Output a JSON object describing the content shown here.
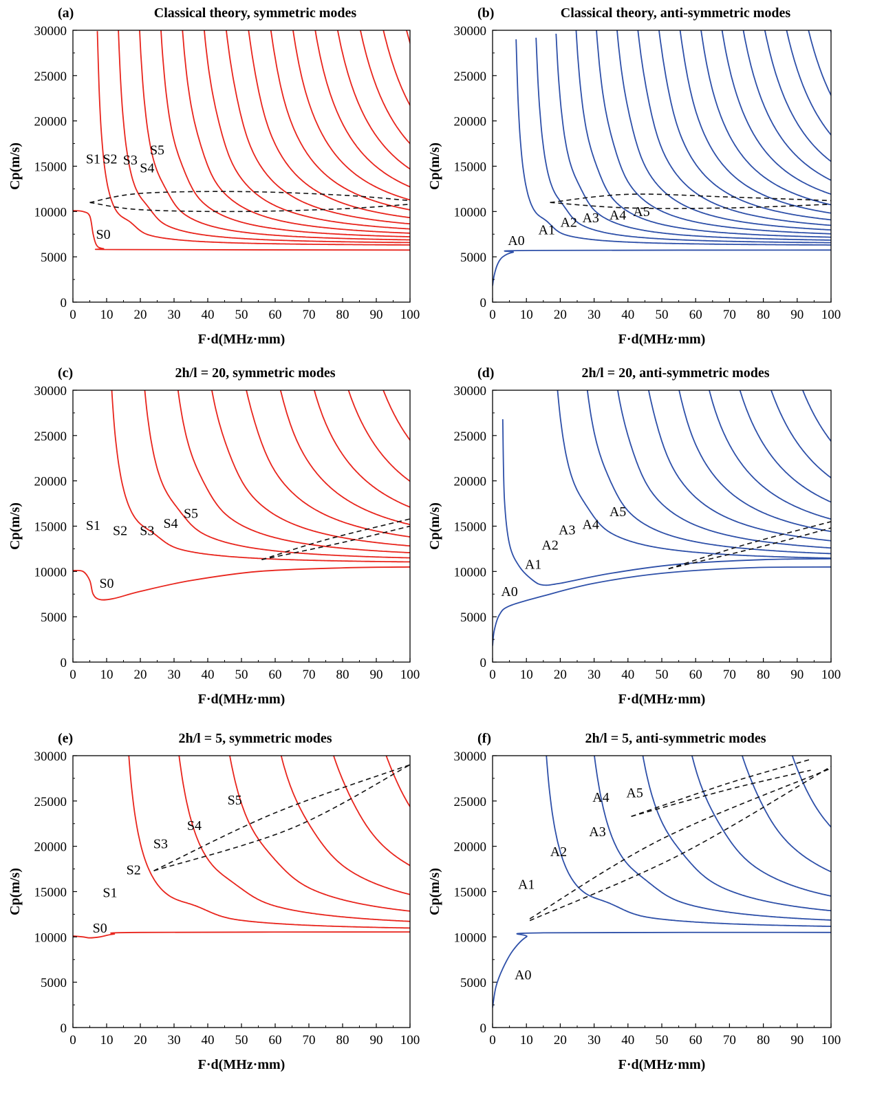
{
  "figure": {
    "colors": {
      "symmetric": "#e8241c",
      "antisymmetric": "#2d4fa8",
      "dashed": "#111111"
    }
  },
  "chart_data": [
    {
      "type": "line",
      "panel": "(a)",
      "title": "Classical theory, symmetric modes",
      "xlabel": "F·d(MHz·mm)",
      "ylabel": "Cp(m/s)",
      "xlim": [
        0,
        100
      ],
      "ylim": [
        0,
        30000
      ],
      "xticks": [
        0,
        10,
        20,
        30,
        40,
        50,
        60,
        70,
        80,
        90,
        100
      ],
      "yticks": [
        0,
        5000,
        10000,
        15000,
        20000,
        25000,
        30000
      ],
      "family": "symmetric",
      "asymptote": 6200,
      "mode_spacing": 5.2,
      "mode_count": 19,
      "series": [
        {
          "name": "S0",
          "kind": "base",
          "points": [
            [
              0,
              10100
            ],
            [
              3,
              10000
            ],
            [
              5,
              9500
            ],
            [
              6,
              7500
            ],
            [
              7,
              6300
            ],
            [
              9,
              5900
            ],
            [
              15,
              5800
            ],
            [
              100,
              5750
            ]
          ]
        }
      ],
      "mode_labels": [
        {
          "text": "S0",
          "x": 9,
          "y": 7000
        },
        {
          "text": "S1",
          "x": 6,
          "y": 15300
        },
        {
          "text": "S2",
          "x": 11,
          "y": 15300
        },
        {
          "text": "S3",
          "x": 17,
          "y": 15200
        },
        {
          "text": "S4",
          "x": 22,
          "y": 14300
        },
        {
          "text": "S5",
          "x": 25,
          "y": 16300
        }
      ],
      "dashed": [
        {
          "points": [
            [
              5,
              11000
            ],
            [
              20,
              12000
            ],
            [
              50,
              12200
            ],
            [
              80,
              11800
            ],
            [
              100,
              11200
            ]
          ]
        },
        {
          "points": [
            [
              5,
              11000
            ],
            [
              20,
              10200
            ],
            [
              50,
              10000
            ],
            [
              80,
              10300
            ],
            [
              100,
              10800
            ]
          ]
        }
      ]
    },
    {
      "type": "line",
      "panel": "(b)",
      "title": "Classical theory, anti-symmetric modes",
      "xlabel": "F·d(MHz·mm)",
      "ylabel": "Cp(m/s)",
      "xlim": [
        0,
        100
      ],
      "ylim": [
        0,
        30000
      ],
      "xticks": [
        0,
        10,
        20,
        30,
        40,
        50,
        60,
        70,
        80,
        90,
        100
      ],
      "yticks": [
        0,
        5000,
        10000,
        15000,
        20000,
        25000,
        30000
      ],
      "family": "antisymmetric",
      "asymptote": 6200,
      "mode_spacing": 4.9,
      "mode_count": 20,
      "series": [
        {
          "name": "A0",
          "kind": "base",
          "points": [
            [
              0,
              1800
            ],
            [
              0.5,
              3000
            ],
            [
              1.5,
              4200
            ],
            [
              3,
              5000
            ],
            [
              6,
              5500
            ],
            [
              12,
              5700
            ],
            [
              100,
              5750
            ]
          ]
        }
      ],
      "mode_labels": [
        {
          "text": "A0",
          "x": 7,
          "y": 6300
        },
        {
          "text": "A1",
          "x": 16,
          "y": 7500
        },
        {
          "text": "A2",
          "x": 22.5,
          "y": 8300
        },
        {
          "text": "A3",
          "x": 29,
          "y": 8800
        },
        {
          "text": "A4",
          "x": 37,
          "y": 9100
        },
        {
          "text": "A5",
          "x": 44,
          "y": 9500
        }
      ],
      "dashed": [
        {
          "points": [
            [
              17,
              11000
            ],
            [
              40,
              11900
            ],
            [
              70,
              11600
            ],
            [
              100,
              11200
            ]
          ]
        },
        {
          "points": [
            [
              17,
              11000
            ],
            [
              40,
              10400
            ],
            [
              70,
              10400
            ],
            [
              100,
              10800
            ]
          ]
        }
      ]
    },
    {
      "type": "line",
      "panel": "(c)",
      "title": "2h/l = 20, symmetric modes",
      "title_italic": "h/l",
      "xlabel": "F·d(MHz·mm)",
      "ylabel": "Cp(m/s)",
      "xlim": [
        0,
        100
      ],
      "ylim": [
        0,
        30000
      ],
      "xticks": [
        0,
        10,
        20,
        30,
        40,
        50,
        60,
        70,
        80,
        90,
        100
      ],
      "yticks": [
        0,
        5000,
        10000,
        15000,
        20000,
        25000,
        30000
      ],
      "family": "symmetric",
      "asymptote": 10800,
      "mode_spacing": 7.3,
      "mode_count": 13,
      "series": [
        {
          "name": "S0",
          "kind": "base",
          "points": [
            [
              0,
              10100
            ],
            [
              3,
              10000
            ],
            [
              5,
              9000
            ],
            [
              6,
              7500
            ],
            [
              8,
              6900
            ],
            [
              12,
              7000
            ],
            [
              20,
              7800
            ],
            [
              35,
              9000
            ],
            [
              55,
              10000
            ],
            [
              80,
              10400
            ],
            [
              100,
              10500
            ]
          ]
        }
      ],
      "mode_labels": [
        {
          "text": "S0",
          "x": 10,
          "y": 8200
        },
        {
          "text": "S1",
          "x": 6,
          "y": 14600
        },
        {
          "text": "S2",
          "x": 14,
          "y": 14000
        },
        {
          "text": "S3",
          "x": 22,
          "y": 14000
        },
        {
          "text": "S4",
          "x": 29,
          "y": 14800
        },
        {
          "text": "S5",
          "x": 35,
          "y": 15900
        }
      ],
      "dashed": [
        {
          "points": [
            [
              56,
              11300
            ],
            [
              75,
              13500
            ],
            [
              100,
              15800
            ]
          ]
        },
        {
          "points": [
            [
              56,
              11300
            ],
            [
              80,
              13200
            ],
            [
              100,
              15000
            ]
          ]
        }
      ]
    },
    {
      "type": "line",
      "panel": "(d)",
      "title": "2h/l = 20, anti-symmetric modes",
      "title_italic": "h/l",
      "xlabel": "F·d(MHz·mm)",
      "ylabel": "Cp(m/s)",
      "xlim": [
        0,
        100
      ],
      "ylim": [
        0,
        30000
      ],
      "xticks": [
        0,
        10,
        20,
        30,
        40,
        50,
        60,
        70,
        80,
        90,
        100
      ],
      "yticks": [
        0,
        5000,
        10000,
        15000,
        20000,
        25000,
        30000
      ],
      "family": "antisymmetric",
      "asymptote": 11000,
      "mode_spacing": 6.5,
      "mode_count": 14,
      "series": [
        {
          "name": "A0",
          "kind": "base",
          "points": [
            [
              0,
              1800
            ],
            [
              0.5,
              3500
            ],
            [
              2,
              5200
            ],
            [
              5,
              6200
            ],
            [
              15,
              7300
            ],
            [
              30,
              8700
            ],
            [
              50,
              9800
            ],
            [
              75,
              10400
            ],
            [
              100,
              10500
            ]
          ]
        },
        {
          "name": "A1",
          "kind": "base",
          "points": [
            [
              3,
              26800
            ],
            [
              3.5,
              18000
            ],
            [
              5,
              13000
            ],
            [
              8,
              10500
            ],
            [
              12,
              9000
            ],
            [
              15,
              8500
            ],
            [
              20,
              8700
            ],
            [
              35,
              9800
            ],
            [
              55,
              10800
            ],
            [
              80,
              11300
            ],
            [
              100,
              11400
            ]
          ]
        }
      ],
      "mode_labels": [
        {
          "text": "A0",
          "x": 5,
          "y": 7300
        },
        {
          "text": "A1",
          "x": 12,
          "y": 10300
        },
        {
          "text": "A2",
          "x": 17,
          "y": 12400
        },
        {
          "text": "A3",
          "x": 22,
          "y": 14100
        },
        {
          "text": "A4",
          "x": 29,
          "y": 14700
        },
        {
          "text": "A5",
          "x": 37,
          "y": 16100
        }
      ],
      "dashed": [
        {
          "points": [
            [
              52,
              10300
            ],
            [
              75,
              13000
            ],
            [
              100,
              15500
            ]
          ]
        },
        {
          "points": [
            [
              52,
              10300
            ],
            [
              80,
              12800
            ],
            [
              100,
              14800
            ]
          ]
        }
      ]
    },
    {
      "type": "line",
      "panel": "(e)",
      "title": "2h/l = 5, symmetric modes",
      "title_italic": "h/l",
      "xlabel": "F·d(MHz·mm)",
      "ylabel": "Cp(m/s)",
      "xlim": [
        0,
        100
      ],
      "ylim": [
        0,
        30000
      ],
      "xticks": [
        0,
        10,
        20,
        30,
        40,
        50,
        60,
        70,
        80,
        90,
        100
      ],
      "yticks": [
        0,
        5000,
        10000,
        15000,
        20000,
        25000,
        30000
      ],
      "family": "symmetric",
      "asymptote": 10600,
      "mode_spacing": 11.2,
      "mode_count": 9,
      "series": [
        {
          "name": "S0",
          "kind": "base",
          "points": [
            [
              0,
              10100
            ],
            [
              3,
              10000
            ],
            [
              5,
              9900
            ],
            [
              8,
              10000
            ],
            [
              12,
              10300
            ],
            [
              20,
              10500
            ],
            [
              100,
              10550
            ]
          ]
        }
      ],
      "mode_labels": [
        {
          "text": "S0",
          "x": 8,
          "y": 10500
        },
        {
          "text": "S1",
          "x": 11,
          "y": 14400
        },
        {
          "text": "S2",
          "x": 18,
          "y": 16900
        },
        {
          "text": "S3",
          "x": 26,
          "y": 19800
        },
        {
          "text": "S4",
          "x": 36,
          "y": 21800
        },
        {
          "text": "S5",
          "x": 48,
          "y": 24600
        }
      ],
      "dashed": [
        {
          "points": [
            [
              24,
              17300
            ],
            [
              60,
              23700
            ],
            [
              100,
              29000
            ]
          ]
        },
        {
          "points": [
            [
              24,
              17300
            ],
            [
              65,
              22000
            ],
            [
              100,
              29000
            ]
          ]
        }
      ]
    },
    {
      "type": "line",
      "panel": "(f)",
      "title": "2h/l = 5, anti-symmetric modes",
      "title_italic": "h/l",
      "xlabel": "F·d(MHz·mm)",
      "ylabel": "Cp(m/s)",
      "xlim": [
        0,
        100
      ],
      "ylim": [
        0,
        30000
      ],
      "xticks": [
        0,
        10,
        20,
        30,
        40,
        50,
        60,
        70,
        80,
        90,
        100
      ],
      "yticks": [
        0,
        5000,
        10000,
        15000,
        20000,
        25000,
        30000
      ],
      "family": "antisymmetric",
      "asymptote": 10800,
      "mode_spacing": 10.6,
      "mode_count": 10,
      "series": [
        {
          "name": "A0",
          "kind": "base",
          "points": [
            [
              0,
              2200
            ],
            [
              1,
              4500
            ],
            [
              3,
              6500
            ],
            [
              6,
              8500
            ],
            [
              10,
              10000
            ],
            [
              15,
              10450
            ],
            [
              100,
              10500
            ]
          ]
        }
      ],
      "mode_labels": [
        {
          "text": "A0",
          "x": 9,
          "y": 5300
        },
        {
          "text": "A1",
          "x": 10,
          "y": 15300
        },
        {
          "text": "A2",
          "x": 19.5,
          "y": 18900
        },
        {
          "text": "A3",
          "x": 31,
          "y": 21100
        },
        {
          "text": "A4",
          "x": 32,
          "y": 24900
        },
        {
          "text": "A5",
          "x": 42,
          "y": 25400
        }
      ],
      "dashed": [
        {
          "points": [
            [
              11,
              12000
            ],
            [
              50,
              20800
            ],
            [
              100,
              28600
            ]
          ]
        },
        {
          "points": [
            [
              11,
              11800
            ],
            [
              55,
              19000
            ],
            [
              100,
              28800
            ]
          ]
        },
        {
          "points": [
            [
              41,
              23300
            ],
            [
              70,
              27000
            ],
            [
              94,
              29600
            ]
          ]
        },
        {
          "points": [
            [
              41,
              23300
            ],
            [
              70,
              26300
            ],
            [
              94,
              28400
            ]
          ]
        }
      ]
    }
  ]
}
